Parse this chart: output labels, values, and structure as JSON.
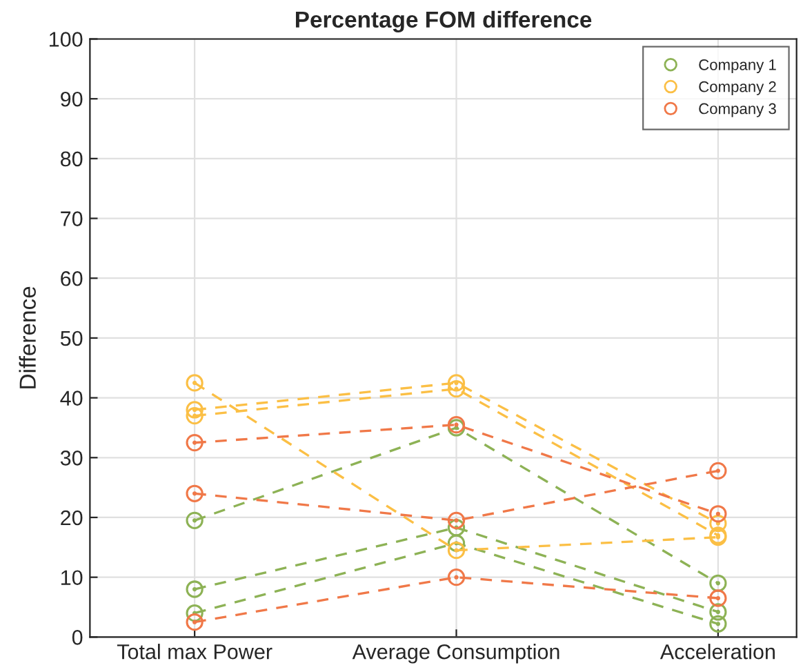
{
  "chart_data": {
    "type": "line",
    "title": "Percentage FOM difference",
    "ylabel": "Difference",
    "categories": [
      "Total max Power",
      "Average Consumption",
      "Acceleration"
    ],
    "series": [
      {
        "name": "Company 1",
        "color": "#8db255",
        "values": [
          19.5,
          35,
          9
        ]
      },
      {
        "color": "#8db255",
        "values": [
          8,
          18.3,
          4.2
        ]
      },
      {
        "color": "#8db255",
        "values": [
          4,
          15.7,
          2.2
        ]
      },
      {
        "name": "Company 2",
        "color": "#fbbf45",
        "values": [
          38,
          42.5,
          19
        ]
      },
      {
        "color": "#fbbf45",
        "values": [
          37,
          41.5,
          17
        ]
      },
      {
        "color": "#fbbf45",
        "values": [
          42.5,
          14.5,
          16.7
        ]
      },
      {
        "name": "Company 3",
        "color": "#f07848",
        "values": [
          32.5,
          35.5,
          20.6
        ]
      },
      {
        "color": "#f07848",
        "values": [
          24,
          19.5,
          27.8
        ]
      },
      {
        "color": "#f07848",
        "values": [
          2.5,
          10,
          6.5
        ]
      }
    ],
    "ylim": [
      0,
      100
    ],
    "yticks": [
      0,
      10,
      20,
      30,
      40,
      50,
      60,
      70,
      80,
      90,
      100
    ],
    "grid": true,
    "legend": "top right",
    "marker": "circle",
    "line_style": "dashed"
  }
}
